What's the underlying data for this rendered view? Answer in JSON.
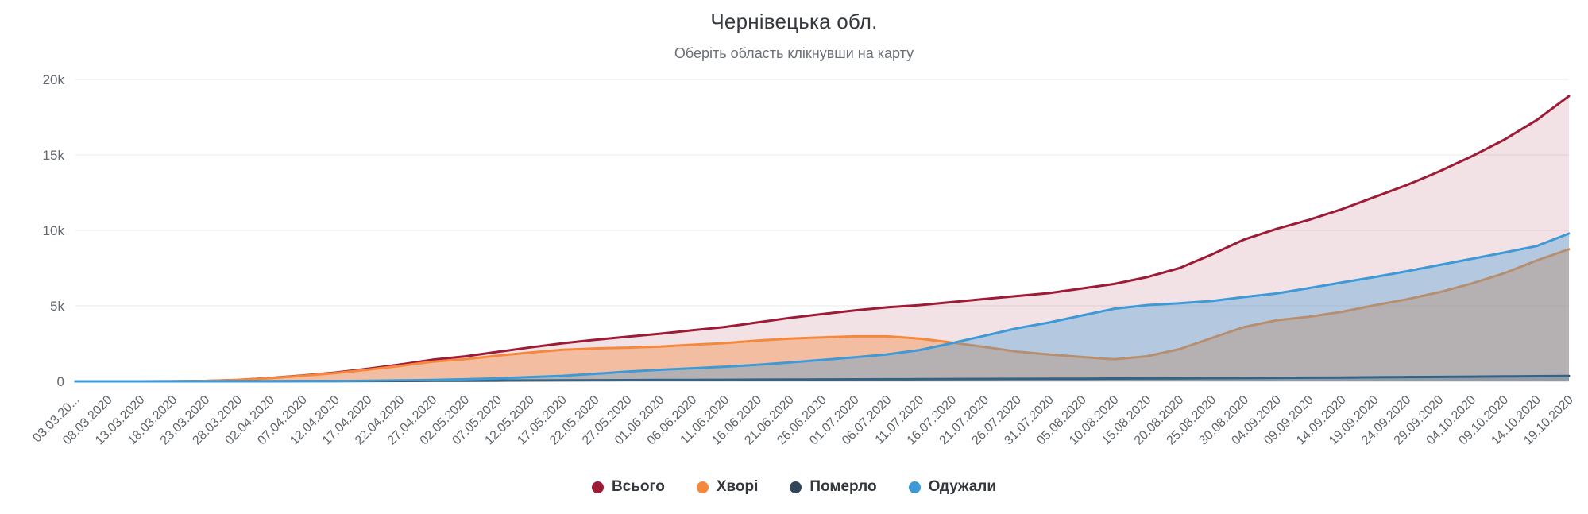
{
  "header": {
    "title": "Чернівецька обл.",
    "subtitle": "Оберіть область клікнувши на карту"
  },
  "chart_data": {
    "type": "area",
    "title": "Чернівецька обл.",
    "subtitle": "Оберіть область клікнувши на карту",
    "xlabel": "",
    "ylabel": "",
    "grid": true,
    "legend_position": "bottom",
    "ylim": [
      0,
      20000
    ],
    "yticks": [
      {
        "value": 0,
        "label": "0"
      },
      {
        "value": 5000,
        "label": "5k"
      },
      {
        "value": 10000,
        "label": "10k"
      },
      {
        "value": 15000,
        "label": "15k"
      },
      {
        "value": 20000,
        "label": "20k"
      }
    ],
    "categories": [
      "03.03.20...",
      "08.03.2020",
      "13.03.2020",
      "18.03.2020",
      "23.03.2020",
      "28.03.2020",
      "02.04.2020",
      "07.04.2020",
      "12.04.2020",
      "17.04.2020",
      "22.04.2020",
      "27.04.2020",
      "02.05.2020",
      "07.05.2020",
      "12.05.2020",
      "17.05.2020",
      "22.05.2020",
      "27.05.2020",
      "01.06.2020",
      "06.06.2020",
      "11.06.2020",
      "16.06.2020",
      "21.06.2020",
      "26.06.2020",
      "01.07.2020",
      "06.07.2020",
      "11.07.2020",
      "16.07.2020",
      "21.07.2020",
      "26.07.2020",
      "31.07.2020",
      "05.08.2020",
      "10.08.2020",
      "15.08.2020",
      "20.08.2020",
      "25.08.2020",
      "30.08.2020",
      "04.09.2020",
      "09.09.2020",
      "14.09.2020",
      "19.09.2020",
      "24.09.2020",
      "29.09.2020",
      "04.10.2020",
      "09.10.2020",
      "14.10.2020",
      "19.10.2020"
    ],
    "series": [
      {
        "key": "total",
        "name": "Всього",
        "color": "#9d1b36",
        "fill_opacity": 0.13,
        "values": [
          0,
          0,
          2,
          7,
          25,
          95,
          220,
          390,
          580,
          830,
          1110,
          1430,
          1650,
          1950,
          2250,
          2520,
          2750,
          2950,
          3150,
          3380,
          3600,
          3900,
          4200,
          4450,
          4700,
          4900,
          5050,
          5250,
          5450,
          5650,
          5850,
          6150,
          6450,
          6900,
          7500,
          8400,
          9400,
          10100,
          10700,
          11400,
          12200,
          13000,
          13900,
          14900,
          16000,
          17300,
          18900
        ]
      },
      {
        "key": "sick",
        "name": "Хворі",
        "color": "#f5883c",
        "fill_opacity": 0.4,
        "values": [
          0,
          0,
          2,
          7,
          25,
          92,
          210,
          370,
          545,
          770,
          1020,
          1300,
          1470,
          1700,
          1910,
          2090,
          2180,
          2230,
          2300,
          2420,
          2530,
          2700,
          2830,
          2910,
          2980,
          2980,
          2830,
          2570,
          2280,
          1970,
          1780,
          1610,
          1460,
          1660,
          2130,
          2870,
          3600,
          4050,
          4280,
          4600,
          5030,
          5430,
          5900,
          6480,
          7150,
          8000,
          8750
        ]
      },
      {
        "key": "died",
        "name": "Померло",
        "color": "#32465a",
        "fill_opacity": 0.28,
        "values": [
          0,
          0,
          0,
          0,
          0,
          3,
          6,
          10,
          15,
          20,
          28,
          35,
          42,
          50,
          58,
          65,
          72,
          80,
          88,
          95,
          102,
          110,
          118,
          125,
          132,
          138,
          144,
          150,
          156,
          162,
          168,
          175,
          182,
          190,
          198,
          208,
          218,
          230,
          242,
          255,
          268,
          282,
          296,
          310,
          325,
          342,
          360
        ]
      },
      {
        "key": "recovered",
        "name": "Одужали",
        "color": "#3d9ad6",
        "fill_opacity": 0.34,
        "values": [
          0,
          0,
          0,
          0,
          0,
          0,
          4,
          10,
          20,
          40,
          62,
          95,
          138,
          200,
          282,
          365,
          498,
          640,
          762,
          865,
          968,
          1090,
          1252,
          1415,
          1588,
          1782,
          2076,
          2530,
          3014,
          3518,
          3902,
          4365,
          4808,
          5050,
          5172,
          5322,
          5582,
          5820,
          6178,
          6545,
          6902,
          7288,
          7704,
          8110,
          8525,
          8958,
          9790
        ]
      }
    ]
  }
}
